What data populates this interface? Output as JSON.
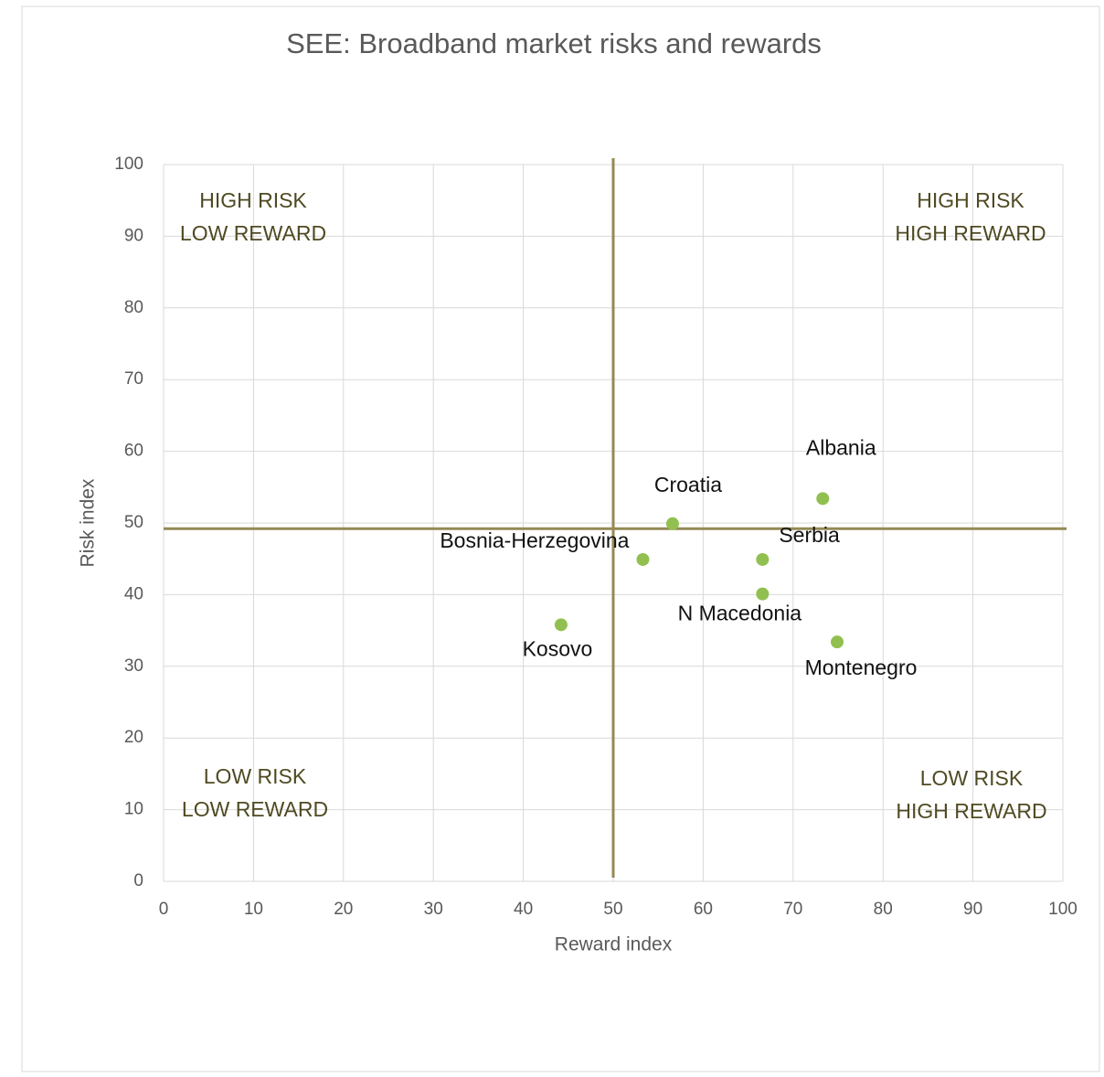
{
  "chart_data": {
    "type": "scatter",
    "title": "SEE: Broadband market risks and rewards",
    "x_label": "Reward index",
    "y_label": "Risk index",
    "labels": [
      "Albania",
      "Croatia",
      "Bosnia-Herzegovina",
      "Serbia",
      "N Macedonia",
      "Kosovo",
      "Montenegro"
    ],
    "x": [
      73.3,
      56.6,
      53.3,
      66.6,
      66.6,
      44.2,
      74.9
    ],
    "values": [
      53.4,
      49.9,
      44.9,
      44.9,
      40.1,
      35.8,
      33.4
    ],
    "color": "#92c050",
    "xlim": [
      0,
      100
    ],
    "xticks": [
      0,
      10,
      20,
      30,
      40,
      50,
      60,
      70,
      80,
      90,
      100
    ],
    "ylim": [
      0,
      100
    ],
    "yticks": [
      0,
      10,
      20,
      30,
      40,
      50,
      60,
      70,
      80,
      90,
      100
    ],
    "grid": true,
    "quadrant_x": 50,
    "quadrant_y": 49.2,
    "quadrant_color": "#948a54",
    "quadrant_labels": [
      {
        "lines": [
          "HIGH RISK",
          "LOW REWARD"
        ]
      },
      {
        "lines": [
          "HIGH RISK",
          "HIGH REWARD"
        ]
      },
      {
        "lines": [
          "LOW RISK",
          "LOW REWARD"
        ]
      },
      {
        "lines": [
          "LOW RISK",
          "HIGH REWARD"
        ]
      }
    ]
  }
}
